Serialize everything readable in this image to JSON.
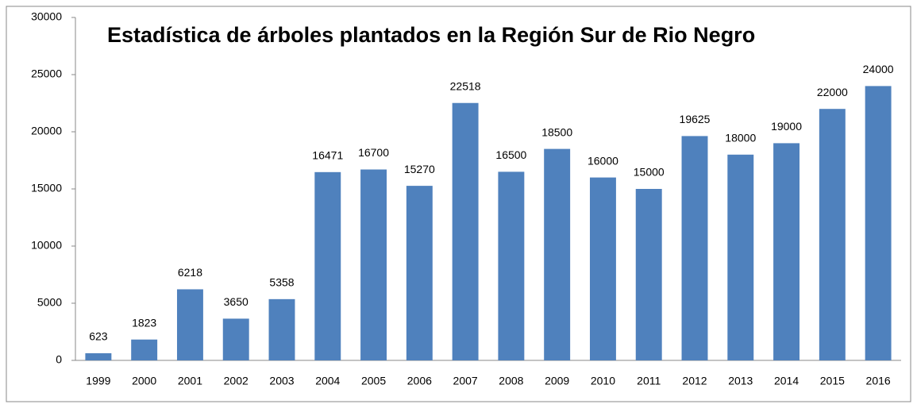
{
  "chart_data": {
    "type": "bar",
    "title": "Estadística de árboles plantados en la Región Sur de Rio Negro",
    "categories": [
      "1999",
      "2000",
      "2001",
      "2002",
      "2003",
      "2004",
      "2005",
      "2006",
      "2007",
      "2008",
      "2009",
      "2010",
      "2011",
      "2012",
      "2013",
      "2014",
      "2015",
      "2016"
    ],
    "values": [
      623,
      1823,
      6218,
      3650,
      5358,
      16471,
      16700,
      15270,
      22518,
      16500,
      18500,
      16000,
      15000,
      19625,
      18000,
      19000,
      22000,
      24000
    ],
    "color": "#4f81bd",
    "ylim": [
      0,
      30000
    ],
    "yticks": [
      0,
      5000,
      10000,
      15000,
      20000,
      25000,
      30000
    ],
    "grid": false,
    "data_labels": true
  }
}
